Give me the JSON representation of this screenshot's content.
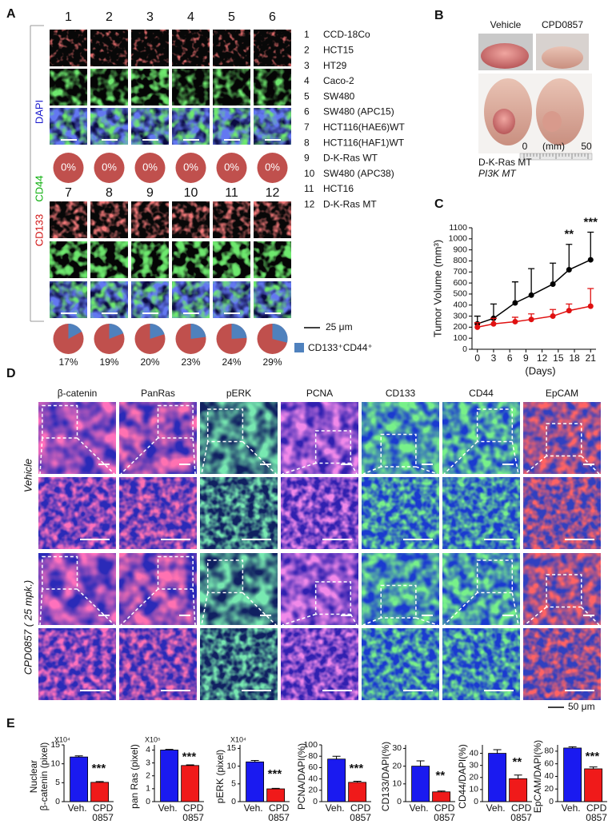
{
  "panels": {
    "a": {
      "label": "A",
      "lanes": [
        "1",
        "2",
        "3",
        "4",
        "5",
        "6",
        "7",
        "8",
        "9",
        "10",
        "11",
        "12"
      ],
      "stains": [
        "DAPI",
        "CD44",
        "CD133"
      ],
      "legend": [
        {
          "number": "1",
          "name": "CCD-18Co"
        },
        {
          "number": "2",
          "name": "HCT15"
        },
        {
          "number": "3",
          "name": "HT29"
        },
        {
          "number": "4",
          "name": "Caco-2"
        },
        {
          "number": "5",
          "name": "SW480"
        },
        {
          "number": "6",
          "name": "SW480 (APC15)"
        },
        {
          "number": "7",
          "name": "HCT116(HAE6)WT"
        },
        {
          "number": "8",
          "name": "HCT116(HAF1)WT"
        },
        {
          "number": "9",
          "name": "D-K-Ras WT"
        },
        {
          "number": "10",
          "name": "SW480 (APC38)"
        },
        {
          "number": "11",
          "name": "HCT16"
        },
        {
          "number": "12",
          "name": "D-K-Ras MT"
        }
      ],
      "pies": {
        "values": [
          0,
          0,
          0,
          0,
          0,
          0,
          17,
          19,
          20,
          23,
          24,
          29
        ],
        "value_labels": [
          "0%",
          "0%",
          "0%",
          "0%",
          "0%",
          "0%",
          "17%",
          "19%",
          "20%",
          "23%",
          "24%",
          "29%"
        ],
        "color": "#4f81bd",
        "background_color": "#c0504d"
      },
      "scale_bar": "25 μm",
      "pie_legend": "CD133⁺CD44⁺"
    },
    "b": {
      "label": "B",
      "groups": [
        "Vehicle",
        "CPD0857"
      ],
      "ruler": {
        "unit": "(mm)",
        "start": "0",
        "end": "50"
      },
      "genotype": [
        "D-K-Ras MT",
        "PI3K MT"
      ]
    },
    "c": {
      "label": "C"
    },
    "d": {
      "label": "D",
      "columns": [
        "β-catenin",
        "PanRas",
        "pERK",
        "PCNA",
        "CD133",
        "CD44",
        "EpCAM"
      ],
      "rows": [
        "Vehicle",
        "CPD0857 ( 25 mpk.)"
      ],
      "scale_bar": "50 μm"
    },
    "e": {
      "label": "E"
    }
  },
  "chart_data": [
    {
      "type": "line",
      "ylabel": "Tumor Volume (mm³)",
      "xlabel": "(Days)",
      "xlim": [
        -1,
        22
      ],
      "xticks": [
        0,
        3,
        6,
        9,
        12,
        15,
        18,
        21
      ],
      "ylim": [
        0,
        1100
      ],
      "yticks": [
        0,
        100,
        200,
        300,
        400,
        500,
        600,
        700,
        800,
        900,
        1000,
        1100
      ],
      "x": [
        0,
        3,
        7,
        10,
        14,
        17,
        21
      ],
      "series": [
        {
          "color": "#000000",
          "values": [
            230,
            280,
            420,
            490,
            590,
            720,
            810
          ],
          "errors": [
            70,
            130,
            190,
            240,
            190,
            230,
            250
          ]
        },
        {
          "color": "#e01010",
          "values": [
            200,
            230,
            250,
            270,
            300,
            350,
            390
          ],
          "errors": [
            40,
            50,
            40,
            50,
            60,
            60,
            160
          ]
        }
      ],
      "annotations": [
        {
          "text": "**",
          "x": 17
        },
        {
          "text": "***",
          "x": 21
        }
      ]
    },
    {
      "type": "bar",
      "ylabel": [
        "Nuclear",
        "β-catenin (pixel)"
      ],
      "multiplier": "X10⁴",
      "categories": [
        [
          "Veh."
        ],
        [
          "CPD",
          "0857"
        ]
      ],
      "values": [
        11.8,
        5.1
      ],
      "errors": [
        0.3,
        0.2
      ],
      "colors": [
        "#1a1af0",
        "#f01a1a"
      ],
      "ylim": [
        0,
        15
      ],
      "yticks": [
        0,
        5,
        10,
        15
      ],
      "significance": "***"
    },
    {
      "type": "bar",
      "ylabel": [
        "pan Ras (pixel)"
      ],
      "multiplier": "X10⁵",
      "categories": [
        [
          "Veh."
        ],
        [
          "CPD",
          "0857"
        ]
      ],
      "values": [
        4.0,
        2.8
      ],
      "errors": [
        0.05,
        0.05
      ],
      "colors": [
        "#1a1af0",
        "#f01a1a"
      ],
      "ylim": [
        0,
        4.4
      ],
      "yticks": [
        0,
        1,
        2,
        3,
        4
      ],
      "significance": "***"
    },
    {
      "type": "bar",
      "ylabel": [
        "pERK (pixel)"
      ],
      "multiplier": "X10⁴",
      "categories": [
        [
          "Veh."
        ],
        [
          "CPD",
          "0857"
        ]
      ],
      "values": [
        11.2,
        3.6
      ],
      "errors": [
        0.4,
        0.15
      ],
      "colors": [
        "#1a1af0",
        "#f01a1a"
      ],
      "ylim": [
        0,
        16
      ],
      "yticks": [
        0,
        5,
        10,
        15
      ],
      "significance": "***"
    },
    {
      "type": "bar",
      "ylabel": [
        "PCNA/DAPI(%)"
      ],
      "categories": [
        [
          "Veh."
        ],
        [
          "CPD",
          "0857"
        ]
      ],
      "values": [
        75,
        34
      ],
      "errors": [
        5,
        2
      ],
      "colors": [
        "#1a1af0",
        "#f01a1a"
      ],
      "ylim": [
        0,
        100
      ],
      "yticks": [
        0,
        20,
        40,
        60,
        80,
        100
      ],
      "significance": "***"
    },
    {
      "type": "bar",
      "ylabel": [
        "CD133/DAPI(%)"
      ],
      "categories": [
        [
          "Veh."
        ],
        [
          "CPD",
          "0857"
        ]
      ],
      "values": [
        20,
        5.5
      ],
      "errors": [
        3,
        0.5
      ],
      "colors": [
        "#1a1af0",
        "#f01a1a"
      ],
      "ylim": [
        0,
        32
      ],
      "yticks": [
        0,
        10,
        20,
        30
      ],
      "significance": "**"
    },
    {
      "type": "bar",
      "ylabel": [
        "CD44/DAPI(%)"
      ],
      "categories": [
        [
          "Veh."
        ],
        [
          "CPD",
          "0857"
        ]
      ],
      "values": [
        40,
        19
      ],
      "errors": [
        3,
        3
      ],
      "colors": [
        "#1a1af0",
        "#f01a1a"
      ],
      "ylim": [
        0,
        47
      ],
      "yticks": [
        0,
        10,
        20,
        30,
        40
      ],
      "significance": "**"
    },
    {
      "type": "bar",
      "ylabel": [
        "EpCAM/DAPI(%)"
      ],
      "categories": [
        [
          "Veh."
        ],
        [
          "CPD",
          "0857"
        ]
      ],
      "values": [
        85,
        52
      ],
      "errors": [
        2,
        3
      ],
      "colors": [
        "#1a1af0",
        "#f01a1a"
      ],
      "ylim": [
        0,
        90
      ],
      "yticks": [
        0,
        20,
        40,
        60,
        80
      ],
      "significance": "***"
    }
  ]
}
